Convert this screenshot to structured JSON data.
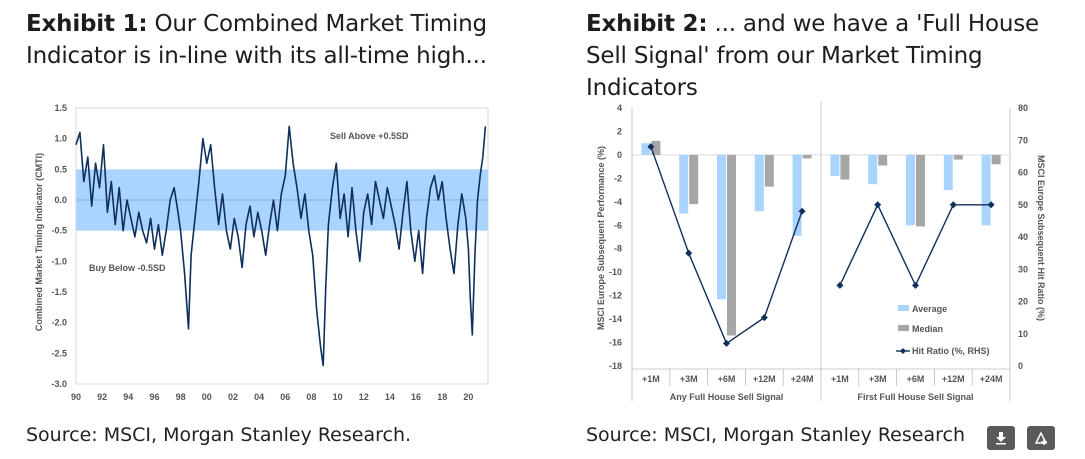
{
  "exhibit1": {
    "label": "Exhibit 1:",
    "title": " Our Combined Market Timing Indicator is in-line with its all-time high...",
    "source": "Source: MSCI, Morgan Stanley Research."
  },
  "exhibit2": {
    "label": "Exhibit 2:",
    "title": " ... and we have a 'Full House Sell Signal' from our Market Timing Indicators",
    "source": "Source: MSCI, Morgan Stanley Research"
  },
  "icons": {
    "download": "download-icon",
    "share": "share-icon"
  },
  "chart_data": [
    {
      "type": "line",
      "title": "",
      "ylabel": "Combined Market Timing Indicator (CMTI)",
      "xlabel": "",
      "ylim": [
        -3.0,
        1.5
      ],
      "yticks": [
        "1.5",
        "1.0",
        "0.5",
        "0.0",
        "-0.5",
        "-1.0",
        "-1.5",
        "-2.0",
        "-2.5",
        "-3.0"
      ],
      "xticks": [
        "90",
        "92",
        "94",
        "96",
        "98",
        "00",
        "02",
        "04",
        "06",
        "08",
        "10",
        "12",
        "14",
        "16",
        "18",
        "20"
      ],
      "xlim": [
        1990,
        2021.5
      ],
      "band": [
        -0.5,
        0.5
      ],
      "annotations": [
        "Sell Above +0.5SD",
        "Buy Below -0.5SD"
      ],
      "colors": {
        "line": "#0f2f5c",
        "band": "#a8d4ff"
      },
      "x": [
        1990.0,
        1990.3,
        1990.6,
        1990.9,
        1991.2,
        1991.5,
        1991.8,
        1992.1,
        1992.4,
        1992.7,
        1993.0,
        1993.3,
        1993.6,
        1993.9,
        1994.2,
        1994.5,
        1994.8,
        1995.1,
        1995.4,
        1995.7,
        1996.0,
        1996.3,
        1996.6,
        1996.9,
        1997.2,
        1997.5,
        1997.8,
        1998.0,
        1998.3,
        1998.6,
        1998.8,
        1999.1,
        1999.4,
        1999.7,
        2000.0,
        2000.3,
        2000.6,
        2000.9,
        2001.2,
        2001.5,
        2001.8,
        2002.1,
        2002.4,
        2002.7,
        2003.0,
        2003.3,
        2003.6,
        2003.9,
        2004.2,
        2004.5,
        2004.8,
        2005.1,
        2005.4,
        2005.7,
        2006.0,
        2006.3,
        2006.6,
        2006.9,
        2007.2,
        2007.5,
        2007.8,
        2008.1,
        2008.4,
        2008.7,
        2008.9,
        2009.1,
        2009.3,
        2009.6,
        2009.9,
        2010.2,
        2010.5,
        2010.8,
        2011.1,
        2011.4,
        2011.7,
        2012.0,
        2012.3,
        2012.6,
        2012.9,
        2013.2,
        2013.5,
        2013.8,
        2014.1,
        2014.4,
        2014.7,
        2015.0,
        2015.3,
        2015.6,
        2015.9,
        2016.2,
        2016.5,
        2016.8,
        2017.1,
        2017.4,
        2017.7,
        2018.0,
        2018.3,
        2018.6,
        2018.9,
        2019.2,
        2019.5,
        2019.8,
        2020.0,
        2020.15,
        2020.3,
        2020.5,
        2020.7,
        2020.9,
        2021.1,
        2021.3
      ],
      "y": [
        0.9,
        1.1,
        0.3,
        0.7,
        -0.1,
        0.6,
        0.2,
        0.9,
        -0.2,
        0.3,
        -0.4,
        0.2,
        -0.5,
        0.0,
        -0.3,
        -0.6,
        -0.2,
        -0.5,
        -0.7,
        -0.3,
        -0.8,
        -0.4,
        -0.9,
        -0.5,
        0.0,
        0.2,
        -0.2,
        -0.5,
        -1.2,
        -2.1,
        -0.9,
        -0.3,
        0.3,
        1.0,
        0.6,
        0.9,
        0.2,
        -0.4,
        0.1,
        -0.5,
        -0.8,
        -0.3,
        -0.6,
        -1.1,
        -0.4,
        -0.1,
        -0.6,
        -0.2,
        -0.5,
        -0.9,
        -0.4,
        0.0,
        -0.5,
        0.1,
        0.4,
        1.2,
        0.6,
        0.2,
        -0.3,
        0.1,
        -0.5,
        -0.9,
        -1.8,
        -2.4,
        -2.7,
        -1.4,
        -0.4,
        0.2,
        0.6,
        -0.3,
        0.1,
        -0.6,
        0.2,
        -0.5,
        -1.0,
        -0.2,
        0.1,
        -0.4,
        0.3,
        0.0,
        -0.3,
        0.2,
        -0.1,
        -0.4,
        -0.8,
        -0.2,
        0.3,
        -0.5,
        -1.0,
        -0.5,
        -1.2,
        -0.3,
        0.2,
        0.4,
        0.0,
        0.3,
        -0.3,
        -0.8,
        -1.2,
        -0.4,
        0.1,
        -0.3,
        -0.8,
        -1.6,
        -2.2,
        -0.9,
        0.0,
        0.4,
        0.7,
        1.2
      ]
    },
    {
      "type": "bar",
      "title": "",
      "ylabel": "MSCI Europe Subsequent Performance (%)",
      "y2label": "MSCI Europe Subsequent Hit Ratio (%)",
      "ylim": [
        -18,
        4
      ],
      "y2lim": [
        0,
        80
      ],
      "yticks": [
        "4",
        "2",
        "0",
        "-2",
        "-4",
        "-6",
        "-8",
        "-10",
        "-12",
        "-14",
        "-16",
        "-18"
      ],
      "y2ticks": [
        "80",
        "70",
        "60",
        "50",
        "40",
        "30",
        "20",
        "10",
        "0"
      ],
      "groups": [
        {
          "name": "Any Full House Sell Signal",
          "categories": [
            "+1M",
            "+3M",
            "+6M",
            "+12M",
            "+24M"
          ]
        },
        {
          "name": "First Full House Sell Signal",
          "categories": [
            "+1M",
            "+3M",
            "+6M",
            "+12M",
            "+24M"
          ]
        }
      ],
      "series": [
        {
          "name": "Average",
          "color": "#a8d4ff",
          "values": [
            1.0,
            -5.0,
            -12.3,
            -4.8,
            -6.9,
            -1.8,
            -2.5,
            -6.0,
            -3.0,
            -6.0
          ]
        },
        {
          "name": "Median",
          "color": "#a6a6a6",
          "values": [
            1.2,
            -4.2,
            -15.4,
            -2.7,
            -0.3,
            -2.1,
            -0.9,
            -6.1,
            -0.4,
            -0.8
          ]
        },
        {
          "name": "Hit Ratio (%, RHS)",
          "color": "#0f2f5c",
          "axis": "right",
          "values": [
            68,
            35,
            7,
            15,
            48,
            25,
            50,
            25,
            50,
            50
          ]
        }
      ],
      "legend": "bottom-right"
    }
  ]
}
